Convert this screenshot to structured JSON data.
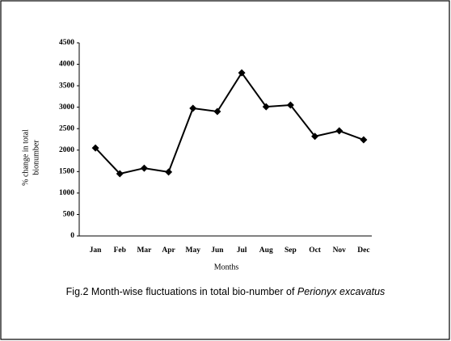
{
  "chart_data": {
    "type": "line",
    "categories": [
      "Jan",
      "Feb",
      "Mar",
      "Apr",
      "May",
      "Jun",
      "Jul",
      "Aug",
      "Sep",
      "Oct",
      "Nov",
      "Dec"
    ],
    "values": [
      2050,
      1450,
      1580,
      1490,
      2975,
      2900,
      3800,
      3010,
      3050,
      2320,
      2450,
      2240
    ],
    "color": "#000000",
    "ylabel": [
      "% change in total",
      "bionumber"
    ],
    "xlabel": "Months",
    "ylim": [
      0,
      4500
    ],
    "yticks": [
      0,
      500,
      1000,
      1500,
      2000,
      2500,
      3000,
      3500,
      4000,
      4500
    ],
    "caption": {
      "text": "Fig.2 Month-wise fluctuations in total bio-number of ",
      "species": "Perionyx excavatus"
    }
  }
}
